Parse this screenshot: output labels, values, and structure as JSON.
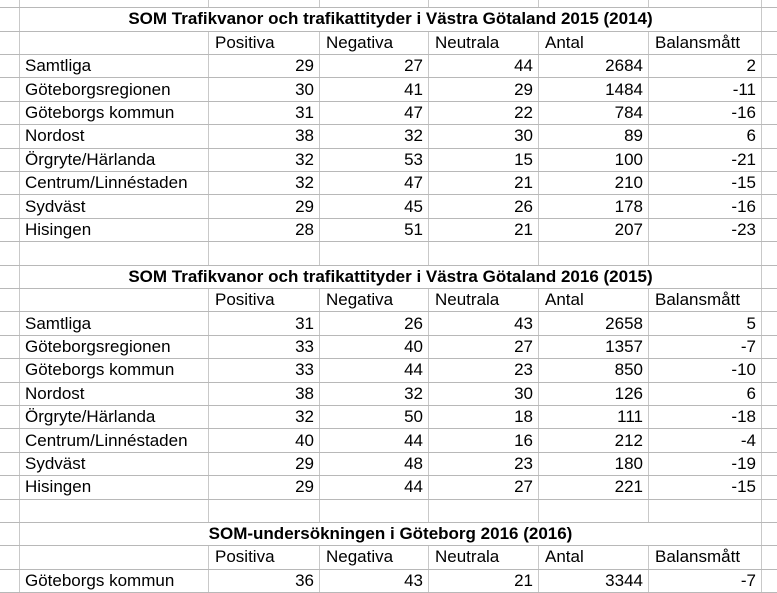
{
  "app": {
    "kind": "spreadsheet-grid",
    "background": "#ffffff",
    "text_color": "#000000",
    "gridline_vertical_color": "#c9c9c9",
    "gridline_horizontal_color": "#b8b8b8"
  },
  "tables": [
    {
      "title": "SOM Trafikvanor och trafikattityder i Västra Götaland 2015 (2014)",
      "headers": [
        "Positiva",
        "Negativa",
        "Neutrala",
        "Antal",
        "Balansmått"
      ],
      "rows": [
        {
          "label": "Samtliga",
          "values": [
            29,
            27,
            44,
            2684,
            2
          ]
        },
        {
          "label": "Göteborgsregionen",
          "values": [
            30,
            41,
            29,
            1484,
            -11
          ]
        },
        {
          "label": "Göteborgs kommun",
          "values": [
            31,
            47,
            22,
            784,
            -16
          ]
        },
        {
          "label": "Nordost",
          "values": [
            38,
            32,
            30,
            89,
            6
          ]
        },
        {
          "label": "Örgryte/Härlanda",
          "values": [
            32,
            53,
            15,
            100,
            -21
          ]
        },
        {
          "label": "Centrum/Linnéstaden",
          "values": [
            32,
            47,
            21,
            210,
            -15
          ]
        },
        {
          "label": "Sydväst",
          "values": [
            29,
            45,
            26,
            178,
            -16
          ]
        },
        {
          "label": "Hisingen",
          "values": [
            28,
            51,
            21,
            207,
            -23
          ]
        }
      ]
    },
    {
      "title": "SOM Trafikvanor och trafikattityder i Västra Götaland 2016 (2015)",
      "headers": [
        "Positiva",
        "Negativa",
        "Neutrala",
        "Antal",
        "Balansmått"
      ],
      "rows": [
        {
          "label": "Samtliga",
          "values": [
            31,
            26,
            43,
            2658,
            5
          ]
        },
        {
          "label": "Göteborgsregionen",
          "values": [
            33,
            40,
            27,
            1357,
            -7
          ]
        },
        {
          "label": "Göteborgs kommun",
          "values": [
            33,
            44,
            23,
            850,
            -10
          ]
        },
        {
          "label": "Nordost",
          "values": [
            38,
            32,
            30,
            126,
            6
          ]
        },
        {
          "label": "Örgryte/Härlanda",
          "values": [
            32,
            50,
            18,
            111,
            -18
          ]
        },
        {
          "label": "Centrum/Linnéstaden",
          "values": [
            40,
            44,
            16,
            212,
            -4
          ]
        },
        {
          "label": "Sydväst",
          "values": [
            29,
            48,
            23,
            180,
            -19
          ]
        },
        {
          "label": "Hisingen",
          "values": [
            29,
            44,
            27,
            221,
            -15
          ]
        }
      ]
    },
    {
      "title": "SOM-undersökningen i Göteborg 2016 (2016)",
      "headers": [
        "Positiva",
        "Negativa",
        "Neutrala",
        "Antal",
        "Balansmått"
      ],
      "rows": [
        {
          "label": "Göteborgs kommun",
          "values": [
            36,
            43,
            21,
            3344,
            -7
          ]
        }
      ]
    }
  ]
}
